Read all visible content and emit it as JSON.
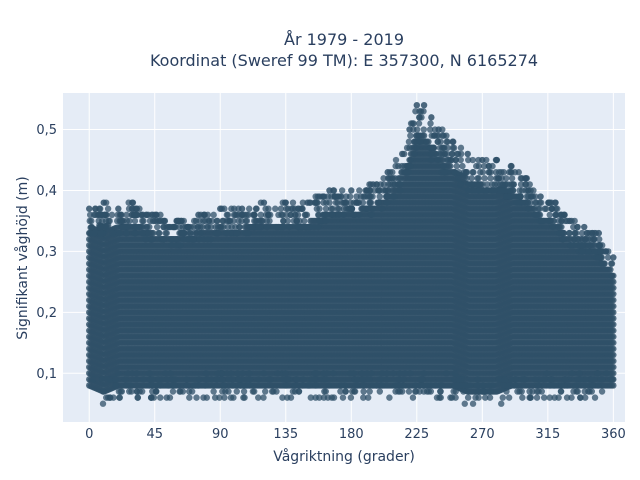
{
  "chart_data": {
    "type": "scatter",
    "title_line1": "År 1979 - 2019",
    "title_line2": "Koordinat (Sweref 99 TM): E 357300, N 6165274",
    "xlabel": "Vågriktning (grader)",
    "ylabel": "Signifikant våghöjd (m)",
    "xlim": [
      -18,
      368
    ],
    "ylim": [
      0.02,
      0.56
    ],
    "x_ticks": [
      0,
      45,
      90,
      135,
      180,
      225,
      270,
      315,
      360
    ],
    "y_ticks": [
      0.1,
      0.2,
      0.3,
      0.4,
      0.5
    ],
    "y_tick_labels": [
      "0,1",
      "0,2",
      "0,3",
      "0,4",
      "0,5"
    ],
    "grid": true,
    "marker_color": "#2f5068",
    "background_color": "#e5ecf6",
    "envelope": {
      "direction": [
        0,
        10,
        20,
        30,
        45,
        60,
        75,
        90,
        105,
        120,
        135,
        150,
        165,
        180,
        195,
        205,
        215,
        220,
        225,
        230,
        235,
        240,
        250,
        260,
        270,
        280,
        290,
        300,
        310,
        320,
        330,
        340,
        350,
        355,
        360
      ],
      "max_height": [
        0.37,
        0.38,
        0.37,
        0.38,
        0.36,
        0.35,
        0.36,
        0.37,
        0.37,
        0.38,
        0.38,
        0.38,
        0.4,
        0.4,
        0.41,
        0.43,
        0.46,
        0.5,
        0.54,
        0.54,
        0.52,
        0.5,
        0.48,
        0.46,
        0.45,
        0.45,
        0.44,
        0.42,
        0.39,
        0.38,
        0.35,
        0.34,
        0.33,
        0.3,
        0.29
      ],
      "min_height": [
        0.06,
        0.05,
        0.06,
        0.06,
        0.06,
        0.06,
        0.06,
        0.06,
        0.06,
        0.06,
        0.06,
        0.06,
        0.06,
        0.06,
        0.06,
        0.06,
        0.06,
        0.06,
        0.06,
        0.06,
        0.06,
        0.06,
        0.06,
        0.05,
        0.05,
        0.05,
        0.06,
        0.06,
        0.06,
        0.06,
        0.06,
        0.06,
        0.06,
        0.06,
        0.06
      ]
    }
  }
}
